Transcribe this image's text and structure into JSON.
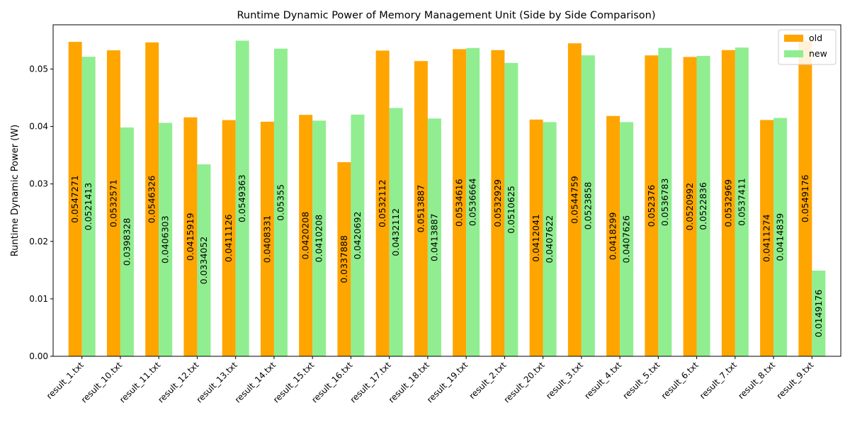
{
  "chart_data": {
    "type": "bar",
    "title": "Runtime Dynamic Power of Memory Management Unit (Side by Side Comparison)",
    "xlabel": "",
    "ylabel": "Runtime Dynamic Power (W)",
    "ylim": [
      0,
      0.0577
    ],
    "yticks": [
      "0.00",
      "0.01",
      "0.02",
      "0.03",
      "0.04",
      "0.05"
    ],
    "ytick_values": [
      0,
      0.01,
      0.02,
      0.03,
      0.04,
      0.05
    ],
    "grid": false,
    "legend_position": "top-right",
    "categories": [
      "result_1.txt",
      "result_10.txt",
      "result_11.txt",
      "result_12.txt",
      "result_13.txt",
      "result_14.txt",
      "result_15.txt",
      "result_16.txt",
      "result_17.txt",
      "result_18.txt",
      "result_19.txt",
      "result_2.txt",
      "result_20.txt",
      "result_3.txt",
      "result_4.txt",
      "result_5.txt",
      "result_6.txt",
      "result_7.txt",
      "result_8.txt",
      "result_9.txt"
    ],
    "series": [
      {
        "name": "old",
        "color": "#ffa500",
        "values": [
          0.0547271,
          0.0532571,
          0.0546326,
          0.0415919,
          0.0411126,
          0.0408331,
          0.0420208,
          0.0337888,
          0.0532112,
          0.0513887,
          0.0534616,
          0.0532929,
          0.0412041,
          0.0544759,
          0.0418299,
          0.052376,
          0.0520992,
          0.0532969,
          0.0411274,
          0.0549176
        ],
        "labels": [
          "0.0547271",
          "0.0532571",
          "0.0546326",
          "0.0415919",
          "0.0411126",
          "0.0408331",
          "0.0420208",
          "0.0337888",
          "0.0532112",
          "0.0513887",
          "0.0534616",
          "0.0532929",
          "0.0412041",
          "0.0544759",
          "0.0418299",
          "0.052376",
          "0.0520992",
          "0.0532969",
          "0.0411274",
          "0.0549176"
        ]
      },
      {
        "name": "new",
        "color": "#90ee90",
        "values": [
          0.0521413,
          0.0398328,
          0.0406303,
          0.0334052,
          0.0549363,
          0.05355,
          0.0410208,
          0.0420692,
          0.0432112,
          0.0413887,
          0.0536664,
          0.0510625,
          0.0407622,
          0.0523858,
          0.0407626,
          0.0536783,
          0.0522836,
          0.0537411,
          0.0414839,
          0.0149176
        ],
        "labels": [
          "0.0521413",
          "0.0398328",
          "0.0406303",
          "0.0334052",
          "0.0549363",
          "0.05355",
          "0.0410208",
          "0.0420692",
          "0.0432112",
          "0.0413887",
          "0.0536664",
          "0.0510625",
          "0.0407622",
          "0.0523858",
          "0.0407626",
          "0.0536783",
          "0.0522836",
          "0.0537411",
          "0.0414839",
          "0.0149176"
        ]
      }
    ]
  }
}
